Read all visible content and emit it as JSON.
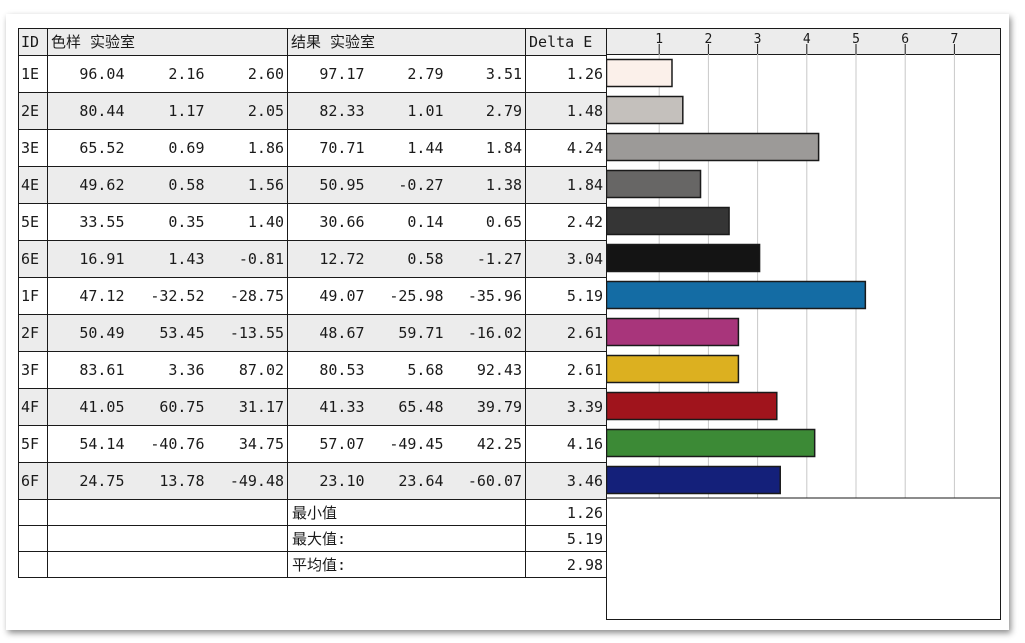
{
  "table": {
    "headers": {
      "id": "ID",
      "sample": "色样 实验室",
      "result": "结果 实验室",
      "delta": "Delta E"
    },
    "rows": [
      {
        "id": "1E",
        "s_L": "96.04",
        "s_a": "2.16",
        "s_b": "2.60",
        "r_L": "97.17",
        "r_a": "2.79",
        "r_b": "3.51",
        "de": "1.26"
      },
      {
        "id": "2E",
        "s_L": "80.44",
        "s_a": "1.17",
        "s_b": "2.05",
        "r_L": "82.33",
        "r_a": "1.01",
        "r_b": "2.79",
        "de": "1.48"
      },
      {
        "id": "3E",
        "s_L": "65.52",
        "s_a": "0.69",
        "s_b": "1.86",
        "r_L": "70.71",
        "r_a": "1.44",
        "r_b": "1.84",
        "de": "4.24"
      },
      {
        "id": "4E",
        "s_L": "49.62",
        "s_a": "0.58",
        "s_b": "1.56",
        "r_L": "50.95",
        "r_a": "-0.27",
        "r_b": "1.38",
        "de": "1.84"
      },
      {
        "id": "5E",
        "s_L": "33.55",
        "s_a": "0.35",
        "s_b": "1.40",
        "r_L": "30.66",
        "r_a": "0.14",
        "r_b": "0.65",
        "de": "2.42"
      },
      {
        "id": "6E",
        "s_L": "16.91",
        "s_a": "1.43",
        "s_b": "-0.81",
        "r_L": "12.72",
        "r_a": "0.58",
        "r_b": "-1.27",
        "de": "3.04"
      },
      {
        "id": "1F",
        "s_L": "47.12",
        "s_a": "-32.52",
        "s_b": "-28.75",
        "r_L": "49.07",
        "r_a": "-25.98",
        "r_b": "-35.96",
        "de": "5.19"
      },
      {
        "id": "2F",
        "s_L": "50.49",
        "s_a": "53.45",
        "s_b": "-13.55",
        "r_L": "48.67",
        "r_a": "59.71",
        "r_b": "-16.02",
        "de": "2.61"
      },
      {
        "id": "3F",
        "s_L": "83.61",
        "s_a": "3.36",
        "s_b": "87.02",
        "r_L": "80.53",
        "r_a": "5.68",
        "r_b": "92.43",
        "de": "2.61"
      },
      {
        "id": "4F",
        "s_L": "41.05",
        "s_a": "60.75",
        "s_b": "31.17",
        "r_L": "41.33",
        "r_a": "65.48",
        "r_b": "39.79",
        "de": "3.39"
      },
      {
        "id": "5F",
        "s_L": "54.14",
        "s_a": "-40.76",
        "s_b": "34.75",
        "r_L": "57.07",
        "r_a": "-49.45",
        "r_b": "42.25",
        "de": "4.16"
      },
      {
        "id": "6F",
        "s_L": "24.75",
        "s_a": "13.78",
        "s_b": "-49.48",
        "r_L": "23.10",
        "r_a": "23.64",
        "r_b": "-60.07",
        "de": "3.46"
      }
    ],
    "stats": [
      {
        "label": "最小值",
        "value": "1.26"
      },
      {
        "label": "最大值:",
        "value": "5.19"
      },
      {
        "label": "平均值:",
        "value": "2.98"
      }
    ]
  },
  "chart_data": {
    "type": "bar",
    "orientation": "horizontal",
    "title": "",
    "xlabel": "",
    "ylabel": "",
    "categories": [
      "1E",
      "2E",
      "3E",
      "4E",
      "5E",
      "6E",
      "1F",
      "2F",
      "3F",
      "4F",
      "5F",
      "6F"
    ],
    "values": [
      1.26,
      1.48,
      4.24,
      1.84,
      2.42,
      3.04,
      5.19,
      2.61,
      2.61,
      3.39,
      4.16,
      3.46
    ],
    "bar_colors": [
      "#fbf0ea",
      "#c4c0bc",
      "#9c9a98",
      "#676665",
      "#353535",
      "#141414",
      "#146ca4",
      "#a8357b",
      "#dcb020",
      "#a0141c",
      "#3c8a36",
      "#14207a"
    ],
    "xlim": [
      0,
      7
    ],
    "ticks": [
      1,
      2,
      3,
      4,
      5,
      6,
      7
    ],
    "tick_labels": [
      "1",
      "2",
      "3",
      "4",
      "5",
      "6",
      "7"
    ],
    "grid": true,
    "legend": "none"
  },
  "colors": {
    "header_bg": "#ececec",
    "grid_line": "#c8c8c8",
    "border": "#1a1a1a"
  }
}
